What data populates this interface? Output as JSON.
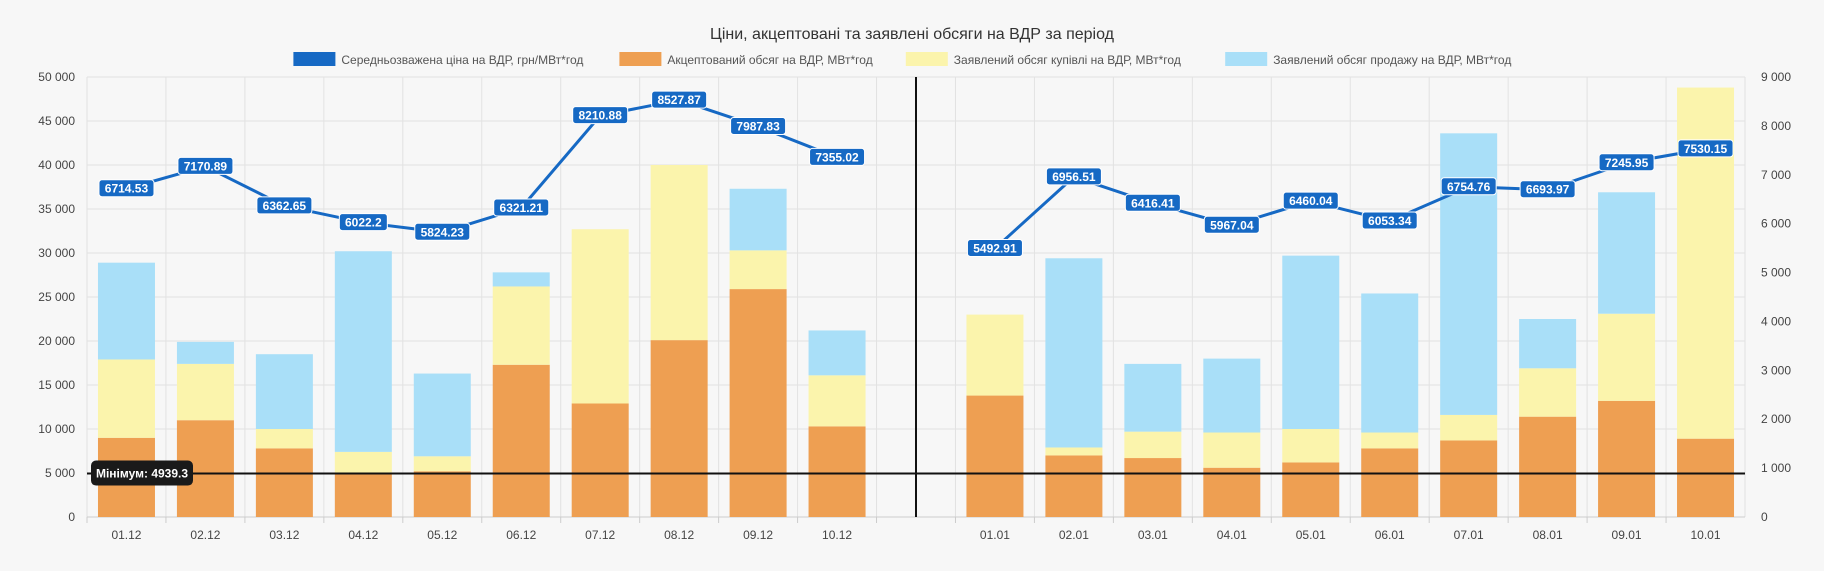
{
  "chart_data": {
    "type": "bar",
    "title": "Ціни, акцептовані та заявлені обсяги на ВДР за період",
    "categories": [
      "01.12",
      "02.12",
      "03.12",
      "04.12",
      "05.12",
      "06.12",
      "07.12",
      "08.12",
      "09.12",
      "10.12",
      "",
      "01.01",
      "02.01",
      "03.01",
      "04.01",
      "05.01",
      "06.01",
      "07.01",
      "08.01",
      "09.01",
      "10.01"
    ],
    "stacked": true,
    "series": [
      {
        "name": "Акцептований обсяг на ВДР, МВт*год",
        "type": "bar",
        "axis": "left",
        "color": "#ee9f52",
        "values": [
          9000,
          11000,
          7800,
          5000,
          5200,
          17300,
          12900,
          20100,
          25900,
          10300,
          null,
          13800,
          7000,
          6700,
          5600,
          6200,
          7800,
          8700,
          11400,
          13200,
          8900
        ]
      },
      {
        "name": "Заявлений обсяг купівлі на ВДР, МВт*год",
        "type": "bar",
        "axis": "left",
        "color": "#fbf4ac",
        "values": [
          8900,
          6400,
          2200,
          2400,
          1700,
          8900,
          19800,
          19900,
          4400,
          5800,
          null,
          9200,
          900,
          3000,
          4000,
          3800,
          1800,
          2900,
          5500,
          9900,
          39900
        ]
      },
      {
        "name": "Заявлений обсяг продажу на ВДР, МВт*год",
        "type": "bar",
        "axis": "left",
        "color": "#a9dff8",
        "values": [
          11000,
          2500,
          8500,
          22800,
          9400,
          1600,
          0,
          0,
          7000,
          5100,
          null,
          0,
          21500,
          7700,
          8400,
          19700,
          15800,
          32000,
          5600,
          13800,
          0
        ]
      },
      {
        "name": "Середньозважена ціна на ВДР, грн/МВт*год",
        "type": "line",
        "axis": "right",
        "color": "#1669c4",
        "values": [
          6714.53,
          7170.89,
          6362.65,
          6022.2,
          5824.23,
          6321.21,
          8210.88,
          8527.87,
          7987.83,
          7355.02,
          null,
          5492.91,
          6956.51,
          6416.41,
          5967.04,
          6460.04,
          6053.34,
          6754.76,
          6693.97,
          7245.95,
          7530.15
        ],
        "labels": [
          "6714.53",
          "7170.89",
          "6362.65",
          "6022.2",
          "5824.23",
          "6321.21",
          "8210.88",
          "8527.87",
          "7987.83",
          "7355.02",
          "",
          "5492.91",
          "6956.51",
          "6416.41",
          "5967.04",
          "6460.04",
          "6053.34",
          "6754.76",
          "6693.97",
          "7245.95",
          "7530.15"
        ]
      }
    ],
    "y_left": {
      "min": 0,
      "max": 50000,
      "ticks": [
        "0",
        "5 000",
        "10 000",
        "15 000",
        "20 000",
        "25 000",
        "30 000",
        "35 000",
        "40 000",
        "45 000",
        "50 000"
      ]
    },
    "y_right": {
      "min": 0,
      "max": 9000,
      "ticks": [
        "0",
        "1 000",
        "2 000",
        "3 000",
        "4 000",
        "5 000",
        "6 000",
        "7 000",
        "8 000",
        "9 000"
      ]
    },
    "legend_order": [
      3,
      0,
      1,
      2
    ],
    "annotation": {
      "label": "Мінімум: 4939.3",
      "value": 4939.3,
      "axis": "left"
    },
    "separator_after_index": 9,
    "grid": true,
    "legend_position": "top"
  }
}
